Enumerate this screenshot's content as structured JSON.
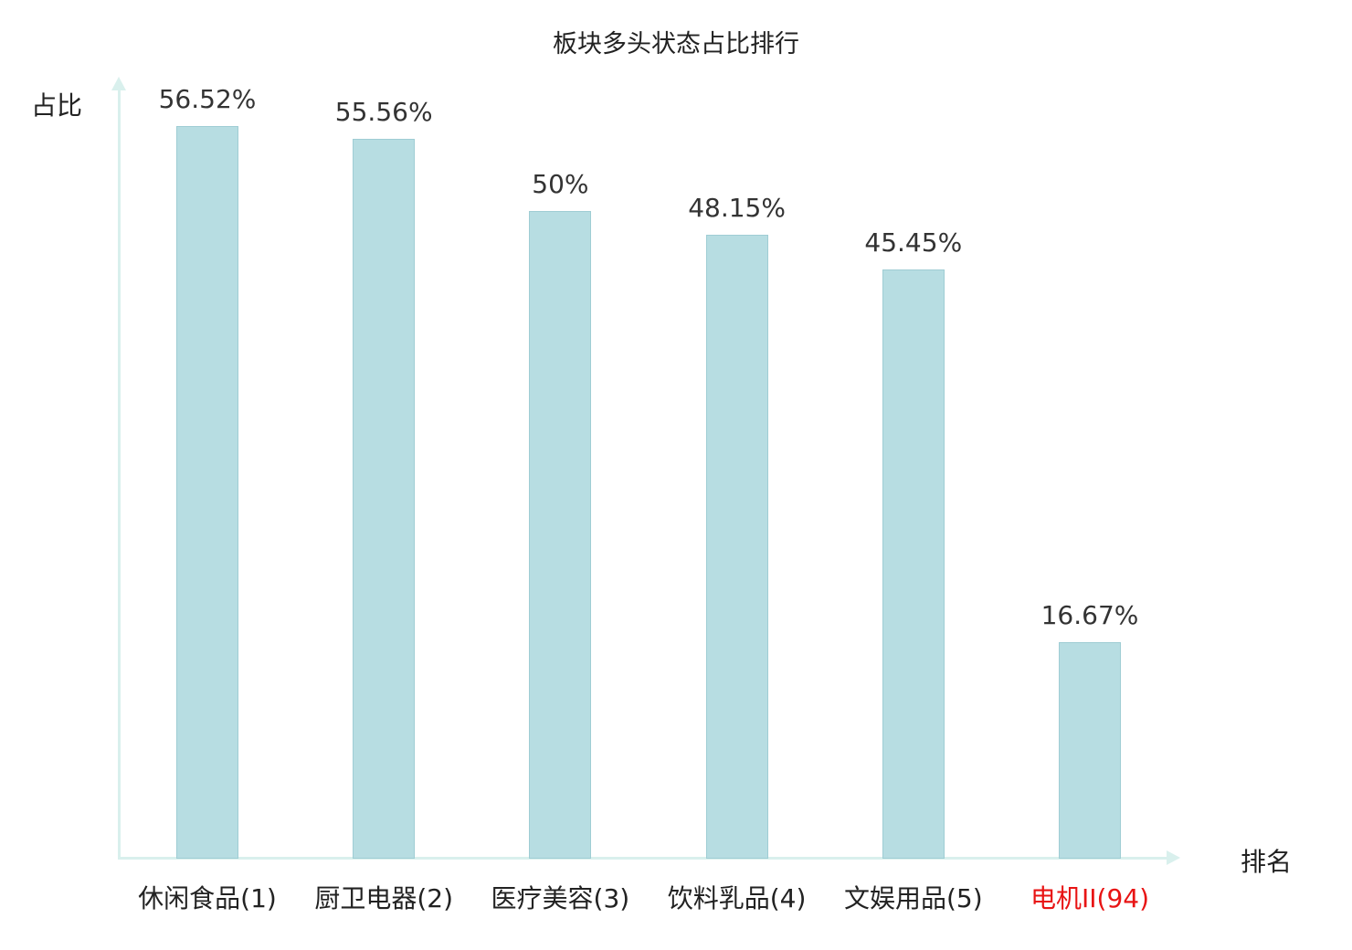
{
  "title": "板块多头状态占比排行",
  "axis": {
    "y_label": "占比",
    "x_label": "排名"
  },
  "colors": {
    "bar_fill": "#b7dde2",
    "bar_border": "#9fcdd4",
    "axis": "#d9f0ed",
    "text": "#333333",
    "highlight": "#e81414"
  },
  "chart_data": {
    "type": "bar",
    "title": "板块多头状态占比排行",
    "xlabel": "排名",
    "ylabel": "占比",
    "categories": [
      "休闲食品(1)",
      "厨卫电器(2)",
      "医疗美容(3)",
      "饮料乳品(4)",
      "文娱用品(5)",
      "电机II(94)"
    ],
    "values": [
      56.52,
      55.56,
      50,
      48.15,
      45.45,
      16.67
    ],
    "value_labels": [
      "56.52%",
      "55.56%",
      "50%",
      "48.15%",
      "45.45%",
      "16.67%"
    ],
    "highlight_index": 5,
    "ylim": [
      0,
      60
    ],
    "grid": false,
    "legend": "none"
  }
}
